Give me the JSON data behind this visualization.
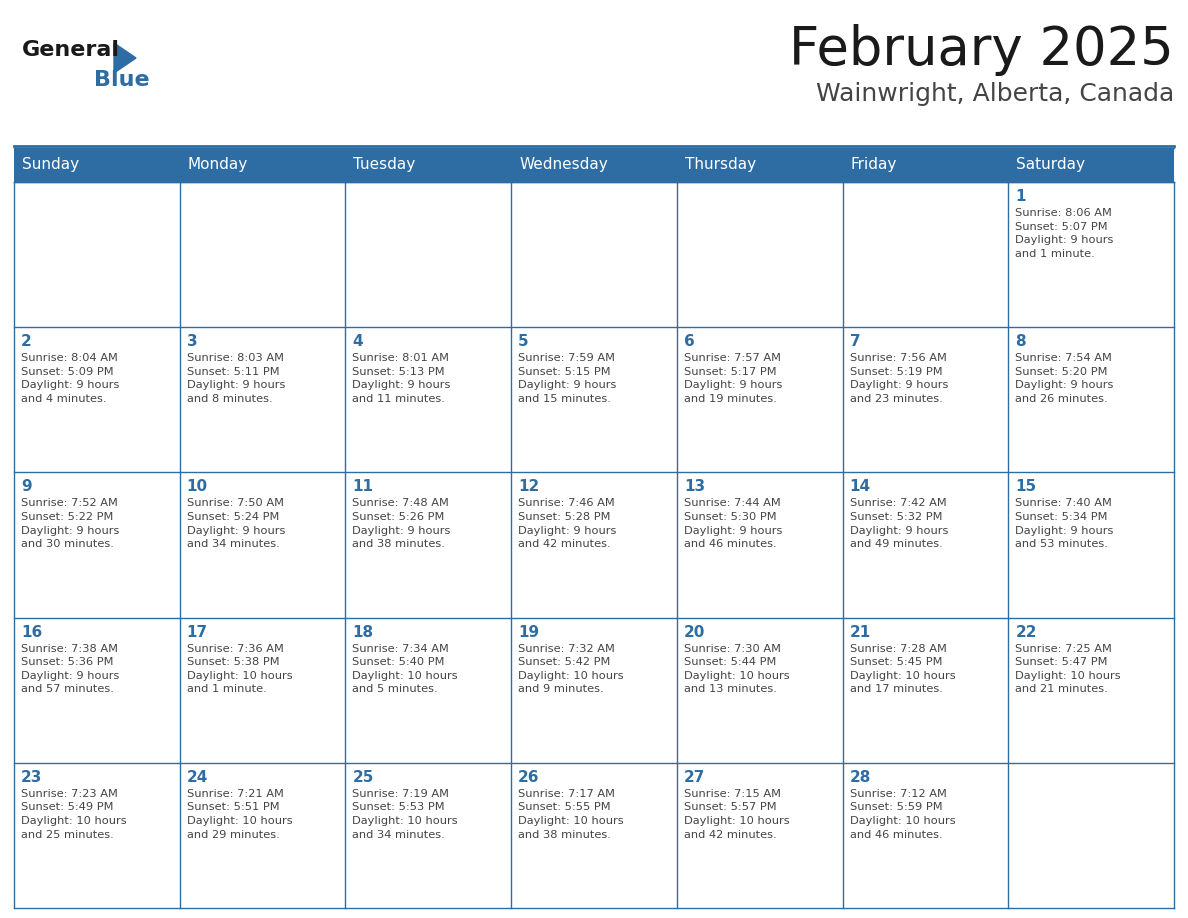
{
  "title": "February 2025",
  "subtitle": "Wainwright, Alberta, Canada",
  "days_of_week": [
    "Sunday",
    "Monday",
    "Tuesday",
    "Wednesday",
    "Thursday",
    "Friday",
    "Saturday"
  ],
  "header_bg": "#2E6DA4",
  "header_text": "#FFFFFF",
  "cell_bg": "#FFFFFF",
  "cell_border": "#CCCCCC",
  "day_number_color": "#2E6DA4",
  "text_color": "#444444",
  "title_color": "#1a1a1a",
  "subtitle_color": "#444444",
  "logo_general_color": "#1a1a1a",
  "logo_blue_color": "#2E6DA4",
  "weeks": [
    [
      {
        "day": null,
        "info": null
      },
      {
        "day": null,
        "info": null
      },
      {
        "day": null,
        "info": null
      },
      {
        "day": null,
        "info": null
      },
      {
        "day": null,
        "info": null
      },
      {
        "day": null,
        "info": null
      },
      {
        "day": 1,
        "info": "Sunrise: 8:06 AM\nSunset: 5:07 PM\nDaylight: 9 hours\nand 1 minute."
      }
    ],
    [
      {
        "day": 2,
        "info": "Sunrise: 8:04 AM\nSunset: 5:09 PM\nDaylight: 9 hours\nand 4 minutes."
      },
      {
        "day": 3,
        "info": "Sunrise: 8:03 AM\nSunset: 5:11 PM\nDaylight: 9 hours\nand 8 minutes."
      },
      {
        "day": 4,
        "info": "Sunrise: 8:01 AM\nSunset: 5:13 PM\nDaylight: 9 hours\nand 11 minutes."
      },
      {
        "day": 5,
        "info": "Sunrise: 7:59 AM\nSunset: 5:15 PM\nDaylight: 9 hours\nand 15 minutes."
      },
      {
        "day": 6,
        "info": "Sunrise: 7:57 AM\nSunset: 5:17 PM\nDaylight: 9 hours\nand 19 minutes."
      },
      {
        "day": 7,
        "info": "Sunrise: 7:56 AM\nSunset: 5:19 PM\nDaylight: 9 hours\nand 23 minutes."
      },
      {
        "day": 8,
        "info": "Sunrise: 7:54 AM\nSunset: 5:20 PM\nDaylight: 9 hours\nand 26 minutes."
      }
    ],
    [
      {
        "day": 9,
        "info": "Sunrise: 7:52 AM\nSunset: 5:22 PM\nDaylight: 9 hours\nand 30 minutes."
      },
      {
        "day": 10,
        "info": "Sunrise: 7:50 AM\nSunset: 5:24 PM\nDaylight: 9 hours\nand 34 minutes."
      },
      {
        "day": 11,
        "info": "Sunrise: 7:48 AM\nSunset: 5:26 PM\nDaylight: 9 hours\nand 38 minutes."
      },
      {
        "day": 12,
        "info": "Sunrise: 7:46 AM\nSunset: 5:28 PM\nDaylight: 9 hours\nand 42 minutes."
      },
      {
        "day": 13,
        "info": "Sunrise: 7:44 AM\nSunset: 5:30 PM\nDaylight: 9 hours\nand 46 minutes."
      },
      {
        "day": 14,
        "info": "Sunrise: 7:42 AM\nSunset: 5:32 PM\nDaylight: 9 hours\nand 49 minutes."
      },
      {
        "day": 15,
        "info": "Sunrise: 7:40 AM\nSunset: 5:34 PM\nDaylight: 9 hours\nand 53 minutes."
      }
    ],
    [
      {
        "day": 16,
        "info": "Sunrise: 7:38 AM\nSunset: 5:36 PM\nDaylight: 9 hours\nand 57 minutes."
      },
      {
        "day": 17,
        "info": "Sunrise: 7:36 AM\nSunset: 5:38 PM\nDaylight: 10 hours\nand 1 minute."
      },
      {
        "day": 18,
        "info": "Sunrise: 7:34 AM\nSunset: 5:40 PM\nDaylight: 10 hours\nand 5 minutes."
      },
      {
        "day": 19,
        "info": "Sunrise: 7:32 AM\nSunset: 5:42 PM\nDaylight: 10 hours\nand 9 minutes."
      },
      {
        "day": 20,
        "info": "Sunrise: 7:30 AM\nSunset: 5:44 PM\nDaylight: 10 hours\nand 13 minutes."
      },
      {
        "day": 21,
        "info": "Sunrise: 7:28 AM\nSunset: 5:45 PM\nDaylight: 10 hours\nand 17 minutes."
      },
      {
        "day": 22,
        "info": "Sunrise: 7:25 AM\nSunset: 5:47 PM\nDaylight: 10 hours\nand 21 minutes."
      }
    ],
    [
      {
        "day": 23,
        "info": "Sunrise: 7:23 AM\nSunset: 5:49 PM\nDaylight: 10 hours\nand 25 minutes."
      },
      {
        "day": 24,
        "info": "Sunrise: 7:21 AM\nSunset: 5:51 PM\nDaylight: 10 hours\nand 29 minutes."
      },
      {
        "day": 25,
        "info": "Sunrise: 7:19 AM\nSunset: 5:53 PM\nDaylight: 10 hours\nand 34 minutes."
      },
      {
        "day": 26,
        "info": "Sunrise: 7:17 AM\nSunset: 5:55 PM\nDaylight: 10 hours\nand 38 minutes."
      },
      {
        "day": 27,
        "info": "Sunrise: 7:15 AM\nSunset: 5:57 PM\nDaylight: 10 hours\nand 42 minutes."
      },
      {
        "day": 28,
        "info": "Sunrise: 7:12 AM\nSunset: 5:59 PM\nDaylight: 10 hours\nand 46 minutes."
      },
      {
        "day": null,
        "info": null
      }
    ]
  ]
}
